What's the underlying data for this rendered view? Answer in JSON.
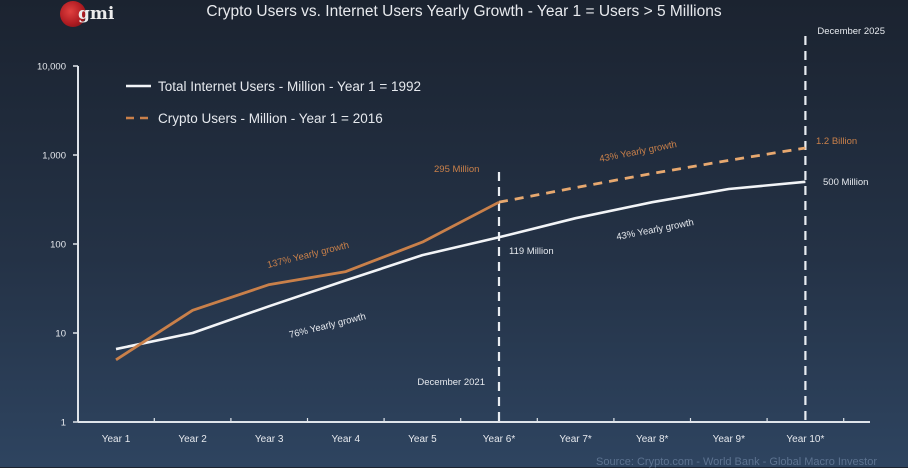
{
  "logo": {
    "text": "gmi",
    "icon": "red-sphere-logo-icon"
  },
  "colors": {
    "internet": "#f2f4f7",
    "crypto": "#c9804a",
    "crypto_label": "#c9804a",
    "axis": "#dfe4ea",
    "text": "#e6e9ee",
    "marker": "#e9edf2"
  },
  "chart_data": {
    "type": "line",
    "title": "Crypto Users vs. Internet Users Yearly Growth - Year 1 = Users > 5 Millions",
    "xlabel": "",
    "ylabel": "",
    "yscale": "log",
    "ylim": [
      1,
      10000
    ],
    "yticks": [
      1,
      10,
      100,
      1000,
      10000
    ],
    "ytick_labels": [
      "1",
      "10",
      "100",
      "1,000",
      "10,000"
    ],
    "categories": [
      "Year 1",
      "Year 2",
      "Year 3",
      "Year 4",
      "Year 5",
      "Year 6*",
      "Year 7*",
      "Year 8*",
      "Year 9*",
      "Year 10*"
    ],
    "grid": false,
    "legend_position": "top-left",
    "series": [
      {
        "name": "Total Internet Users - Million - Year 1 = 1992",
        "style": "solid",
        "values": [
          6.6,
          10,
          20,
          39,
          75,
          119,
          195,
          295,
          415,
          500
        ]
      },
      {
        "name": "Crypto Users - Million - Year 1 = 2016",
        "style": "solid-then-dashed",
        "dashed_from_index": 5,
        "values": [
          5,
          18,
          35,
          49,
          105,
          295,
          430,
          620,
          870,
          1200
        ]
      }
    ],
    "vertical_markers": [
      {
        "at": "Year 6*",
        "label": "December 2021",
        "label_position": "bottom-left"
      },
      {
        "at": "Year 10*",
        "label": "December 2025",
        "label_position": "top"
      }
    ],
    "annotations": [
      {
        "text": "137% Yearly growth",
        "series": "crypto",
        "near": "Year 3-4"
      },
      {
        "text": "76% Yearly growth",
        "series": "internet",
        "near": "Year 3-4"
      },
      {
        "text": "295 Million",
        "series": "crypto",
        "at": "Year 6*"
      },
      {
        "text": "119 Million",
        "series": "internet",
        "at": "Year 6*"
      },
      {
        "text": "43% Yearly growth",
        "series": "crypto",
        "near": "Year 8"
      },
      {
        "text": "43% Yearly growth",
        "series": "internet",
        "near": "Year 8"
      },
      {
        "text": "1.2 Billion",
        "series": "crypto",
        "at": "Year 10*"
      },
      {
        "text": "500 Million",
        "series": "internet",
        "at": "Year 10*"
      }
    ],
    "source": "Source: Crypto.com - World Bank - Global Macro Investor"
  }
}
